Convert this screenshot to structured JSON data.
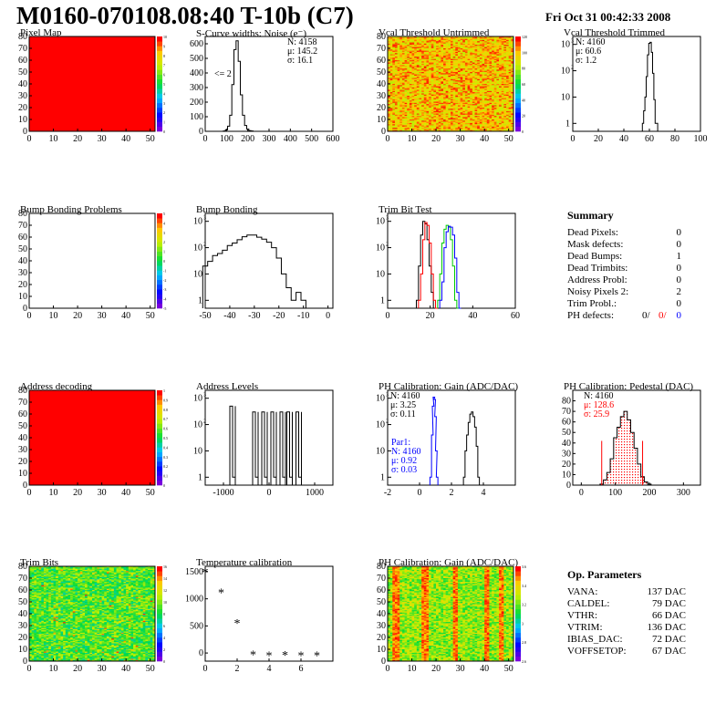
{
  "header": {
    "title": "M0160-070108.08:40 T-10b (C7)",
    "date": "Fri Oct 31 00:42:33 2008"
  },
  "colors": {
    "red": "#ff0000",
    "blue": "#0000ff",
    "green": "#00cc00",
    "black": "#000000"
  },
  "chart_data": [
    {
      "id": "pixel-map",
      "type": "heatmap",
      "title": "Pixel Map",
      "fill": "uniform-red",
      "xticks": [
        0,
        10,
        20,
        30,
        40,
        50
      ],
      "yticks": [
        0,
        10,
        20,
        30,
        40,
        50,
        60,
        70,
        80
      ],
      "palette": {
        "ticks": [
          0,
          1,
          2,
          3,
          4,
          5,
          6,
          7,
          8,
          9,
          10
        ]
      }
    },
    {
      "id": "scurve",
      "type": "line",
      "title": "S-Curve widths: Noise (e⁻)",
      "xlim": [
        0,
        600
      ],
      "ylim": [
        0,
        650
      ],
      "xticks": [
        0,
        100,
        200,
        300,
        400,
        500,
        600
      ],
      "yticks": [
        0,
        100,
        200,
        300,
        400,
        500,
        600
      ],
      "stats": [
        "N: 4158",
        "μ: 145.2",
        "σ: 16.1"
      ],
      "annotation": "<= 2",
      "x": [
        70,
        80,
        90,
        100,
        110,
        120,
        130,
        140,
        150,
        160,
        170,
        180,
        190,
        200,
        210,
        220,
        230,
        240
      ],
      "y": [
        0,
        0,
        2,
        10,
        35,
        110,
        320,
        560,
        620,
        480,
        250,
        110,
        40,
        15,
        5,
        2,
        0,
        0
      ]
    },
    {
      "id": "vcal-untrimmed",
      "type": "heatmap",
      "title": "Vcal Threshold Untrimmed",
      "xticks": [
        0,
        10,
        20,
        30,
        40,
        50
      ],
      "yticks": [
        0,
        10,
        20,
        30,
        40,
        50,
        60,
        70,
        80
      ],
      "palette": {
        "ticks": [
          0,
          20,
          40,
          60,
          80,
          100,
          120
        ]
      }
    },
    {
      "id": "vcal-trimmed",
      "type": "line",
      "title": "Vcal Threshold Trimmed",
      "logy": true,
      "xlim": [
        0,
        100
      ],
      "ylim": [
        0.5,
        2000
      ],
      "xticks": [
        0,
        20,
        40,
        60,
        80,
        100
      ],
      "stats": [
        "N: 4160",
        "μ: 60.6",
        "σ:  1.2"
      ],
      "x": [
        55,
        56,
        57,
        58,
        59,
        60,
        61,
        62,
        63,
        64,
        65,
        66
      ],
      "y": [
        1,
        3,
        10,
        60,
        400,
        1100,
        1200,
        500,
        80,
        8,
        1,
        1
      ]
    },
    {
      "id": "bump-problems",
      "type": "heatmap",
      "title": "Bump Bonding Problems",
      "fill": "white",
      "xticks": [
        0,
        10,
        20,
        30,
        40,
        50
      ],
      "yticks": [
        0,
        10,
        20,
        30,
        40,
        50,
        60,
        70,
        80
      ],
      "palette": {
        "ticks": [
          -5,
          -4,
          -3,
          -2,
          -1,
          0,
          1,
          2,
          3,
          4,
          5
        ]
      }
    },
    {
      "id": "bump-bonding",
      "type": "line",
      "title": "Bump Bonding",
      "logy": true,
      "xlim": [
        -50,
        2
      ],
      "ylim": [
        0.5,
        2000
      ],
      "xticks": [
        -50,
        -40,
        -30,
        -20,
        -10,
        0
      ],
      "x": [
        -50,
        -48,
        -46,
        -44,
        -42,
        -40,
        -38,
        -36,
        -34,
        -32,
        -30,
        -28,
        -26,
        -24,
        -22,
        -20,
        -18,
        -16,
        -14,
        -12,
        -10,
        -8
      ],
      "y": [
        20,
        30,
        50,
        60,
        80,
        120,
        150,
        200,
        260,
        300,
        300,
        250,
        210,
        160,
        100,
        40,
        10,
        3,
        1,
        2,
        1,
        0
      ]
    },
    {
      "id": "trim-bit-test",
      "type": "line",
      "title": "Trim Bit Test",
      "logy": true,
      "xlim": [
        0,
        60
      ],
      "ylim": [
        0.5,
        2000
      ],
      "xticks": [
        0,
        20,
        40,
        60
      ],
      "series": [
        {
          "color": "black",
          "x": [
            14,
            15,
            16,
            17,
            18,
            19,
            20,
            21,
            22
          ],
          "y": [
            1,
            20,
            300,
            1000,
            800,
            200,
            20,
            2,
            0
          ]
        },
        {
          "color": "red",
          "x": [
            15,
            16,
            17,
            18,
            19,
            20,
            21,
            22,
            23
          ],
          "y": [
            1,
            10,
            200,
            900,
            700,
            150,
            10,
            1,
            0
          ]
        },
        {
          "color": "green",
          "x": [
            24,
            25,
            26,
            27,
            28,
            29,
            30,
            31,
            32,
            33
          ],
          "y": [
            1,
            10,
            150,
            500,
            700,
            600,
            200,
            20,
            1,
            0
          ]
        },
        {
          "color": "blue",
          "x": [
            25,
            26,
            27,
            28,
            29,
            30,
            31,
            32,
            33,
            34
          ],
          "y": [
            1,
            5,
            100,
            400,
            650,
            600,
            300,
            40,
            2,
            0
          ]
        }
      ]
    },
    {
      "id": "address-decoding",
      "type": "heatmap",
      "title": "Address decoding",
      "fill": "uniform-red",
      "xticks": [
        0,
        10,
        20,
        30,
        40,
        50
      ],
      "yticks": [
        0,
        10,
        20,
        30,
        40,
        50,
        60,
        70,
        80
      ],
      "palette": {
        "ticks": [
          0,
          0.1,
          0.2,
          0.3,
          0.4,
          0.5,
          0.6,
          0.7,
          0.8,
          0.9,
          1
        ]
      }
    },
    {
      "id": "address-levels",
      "type": "line",
      "title": "Address Levels",
      "logy": true,
      "xlim": [
        -1400,
        1400
      ],
      "ylim": [
        0.5,
        2000
      ],
      "xticks": [
        -1000,
        0,
        1000
      ],
      "peaks": [
        {
          "x": -800,
          "y": 500
        },
        {
          "x": -300,
          "y": 300
        },
        {
          "x": -100,
          "y": 300
        },
        {
          "x": 100,
          "y": 300
        },
        {
          "x": 300,
          "y": 300
        },
        {
          "x": 450,
          "y": 300
        },
        {
          "x": 650,
          "y": 300
        }
      ]
    },
    {
      "id": "ph-gain",
      "type": "line",
      "title": "PH Calibration: Gain (ADC/DAC)",
      "logy": true,
      "xlim": [
        -2,
        6
      ],
      "ylim": [
        0.5,
        2000
      ],
      "xticks": [
        -2,
        0,
        2,
        4
      ],
      "stats": [
        "N: 4160",
        "μ: 3.25",
        "σ: 0.11"
      ],
      "stats2": [
        "Par1:",
        "N: 4160",
        "μ: 0.92",
        "σ: 0.03"
      ],
      "series": [
        {
          "color": "black",
          "x": [
            2.8,
            2.9,
            3.0,
            3.1,
            3.2,
            3.3,
            3.4,
            3.5,
            3.6,
            3.7
          ],
          "y": [
            1,
            10,
            40,
            120,
            250,
            300,
            200,
            80,
            15,
            1
          ]
        },
        {
          "color": "blue",
          "x": [
            0.7,
            0.8,
            0.85,
            0.9,
            0.95,
            1.0,
            1.05,
            1.1
          ],
          "y": [
            1,
            40,
            500,
            1100,
            900,
            200,
            10,
            1
          ]
        }
      ]
    },
    {
      "id": "ph-pedestal",
      "type": "line",
      "title": "PH Calibration: Pedestal (DAC)",
      "xlim": [
        -25,
        350
      ],
      "ylim": [
        0,
        90
      ],
      "xticks": [
        0,
        100,
        200,
        300
      ],
      "yticks": [
        0,
        10,
        20,
        30,
        40,
        50,
        60,
        70,
        80
      ],
      "stats": [
        "N: 4160",
        "μ: 128.6",
        "σ: 25.9"
      ],
      "x": [
        60,
        70,
        80,
        90,
        100,
        110,
        120,
        130,
        140,
        150,
        160,
        170,
        180,
        190,
        200
      ],
      "y": [
        1,
        5,
        12,
        25,
        45,
        55,
        65,
        70,
        62,
        50,
        35,
        20,
        8,
        3,
        1
      ]
    },
    {
      "id": "trim-bits",
      "type": "heatmap",
      "title": "Trim Bits",
      "xticks": [
        0,
        10,
        20,
        30,
        40,
        50
      ],
      "yticks": [
        0,
        10,
        20,
        30,
        40,
        50,
        60,
        70,
        80
      ],
      "palette": {
        "ticks": [
          0,
          2,
          4,
          6,
          8,
          10,
          12,
          14,
          16
        ]
      }
    },
    {
      "id": "temp-cal",
      "type": "scatter",
      "title": "Temperature calibration",
      "xlim": [
        0,
        8
      ],
      "ylim": [
        -150,
        1600
      ],
      "xticks": [
        0,
        2,
        4,
        6
      ],
      "yticks": [
        0,
        500,
        1000,
        1500
      ],
      "x": [
        0,
        1,
        2,
        3,
        4,
        5,
        6,
        7
      ],
      "y": [
        1500,
        1120,
        560,
        -20,
        -40,
        -30,
        -40,
        -40
      ]
    },
    {
      "id": "ph-gain-map",
      "type": "heatmap",
      "title": "PH Calibration: Gain (ADC/DAC)",
      "xticks": [
        0,
        10,
        20,
        30,
        40,
        50
      ],
      "yticks": [
        0,
        10,
        20,
        30,
        40,
        50,
        60,
        70,
        80
      ],
      "palette": {
        "ticks": [
          2.6,
          2.8,
          3,
          3.2,
          3.4,
          3.6
        ]
      }
    }
  ],
  "summary": {
    "title": "Summary",
    "rows": [
      [
        "Dead Pixels:",
        "0"
      ],
      [
        "Mask defects:",
        "0"
      ],
      [
        "Dead Bumps:",
        "1"
      ],
      [
        "Dead Trimbits:",
        "0"
      ],
      [
        "Address Probl:",
        "0"
      ],
      [
        "Noisy Pixels 2:",
        "2"
      ],
      [
        "Trim Probl.:",
        "0"
      ]
    ],
    "ph_label": "PH defects:",
    "ph_values": [
      "0/",
      "0/",
      "0"
    ]
  },
  "op_params": {
    "title": "Op. Parameters",
    "rows": [
      [
        "VANA:",
        "137 DAC"
      ],
      [
        "CALDEL:",
        "79 DAC"
      ],
      [
        "VTHR:",
        "66 DAC"
      ],
      [
        "VTRIM:",
        "136 DAC"
      ],
      [
        "IBIAS_DAC:",
        "72 DAC"
      ],
      [
        "VOFFSETOP:",
        "67 DAC"
      ]
    ]
  }
}
